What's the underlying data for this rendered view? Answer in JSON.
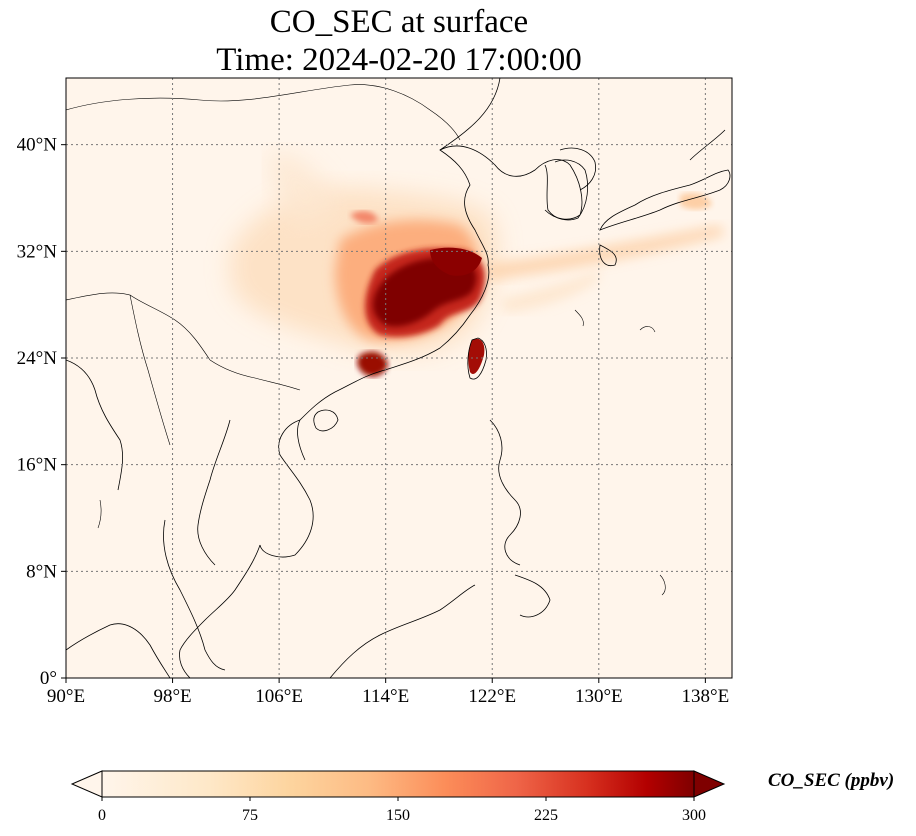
{
  "title": {
    "line1": "CO_SEC at surface",
    "line2": "Time: 2024-02-20 17:00:00"
  },
  "map": {
    "projection": "PlateCarree",
    "lon_range": [
      90,
      140
    ],
    "lat_range": [
      0,
      45
    ],
    "gridlines": "dotted",
    "x_ticks": [
      "90°E",
      "98°E",
      "106°E",
      "114°E",
      "122°E",
      "130°E",
      "138°E"
    ],
    "y_ticks": [
      "0°",
      "8°N",
      "16°N",
      "24°N",
      "32°N",
      "40°N"
    ],
    "background_color": "#fff5eb",
    "coastline_color": "#000000"
  },
  "colorbar": {
    "label": "CO_SEC (ppbv)",
    "ticks": [
      "0",
      "75",
      "150",
      "225",
      "300"
    ],
    "min": 0,
    "max": 300,
    "extend": "both",
    "colormap": "OrRd",
    "colors": [
      "#fff5eb",
      "#fdd49e",
      "#fdbb84",
      "#fc8d59",
      "#ef6548",
      "#d7301f",
      "#b30000",
      "#7f0000"
    ]
  },
  "plume": {
    "peak_region": "Eastern China (Yangtze River Delta to Fujian)",
    "peak_value": "≥300 ppbv",
    "secondary_hotspots": [
      "Pearl River Delta",
      "Western Taiwan"
    ]
  }
}
